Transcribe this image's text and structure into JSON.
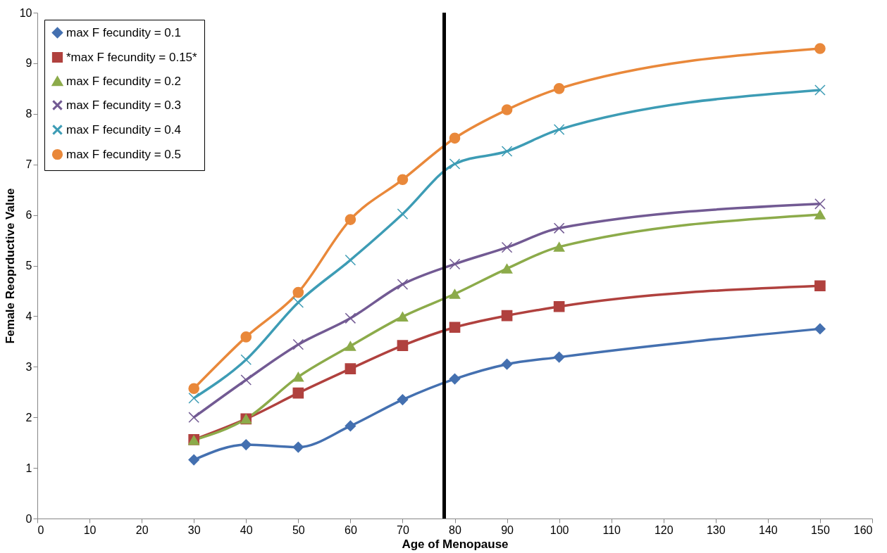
{
  "chart_data": {
    "type": "line",
    "xlabel": "Age of Menopause",
    "ylabel": "Female Reoprductive Value",
    "x": [
      30,
      40,
      50,
      60,
      70,
      80,
      90,
      100,
      150
    ],
    "series": [
      {
        "name": "max F fecundity = 0.1",
        "color": "#4470b0",
        "marker": "diamond",
        "values": [
          1.16,
          1.46,
          1.41,
          1.83,
          2.35,
          2.76,
          3.05,
          3.19,
          3.75
        ]
      },
      {
        "name": "*max F fecundity = 0.15*",
        "color": "#b0413e",
        "marker": "square",
        "values": [
          1.56,
          1.97,
          2.48,
          2.96,
          3.42,
          3.78,
          4.01,
          4.19,
          4.6
        ]
      },
      {
        "name": "max F fecundity = 0.2",
        "color": "#8cab4a",
        "marker": "triangle",
        "values": [
          1.55,
          1.97,
          2.8,
          3.41,
          3.99,
          4.44,
          4.94,
          5.37,
          6.01
        ]
      },
      {
        "name": "max F fecundity = 0.3",
        "color": "#725a93",
        "marker": "cross",
        "values": [
          2.0,
          2.74,
          3.44,
          3.96,
          4.63,
          5.03,
          5.36,
          5.74,
          6.22
        ]
      },
      {
        "name": "max F fecundity = 0.4",
        "color": "#3d9cb5",
        "marker": "cross",
        "values": [
          2.38,
          3.14,
          4.27,
          5.11,
          6.02,
          7.01,
          7.26,
          7.69,
          8.47
        ]
      },
      {
        "name": "max F fecundity = 0.5",
        "color": "#e9883a",
        "marker": "circle",
        "values": [
          2.57,
          3.59,
          4.47,
          5.91,
          6.7,
          7.52,
          8.08,
          8.5,
          9.29
        ]
      }
    ],
    "xlim": [
      0,
      160
    ],
    "xticks": [
      0,
      10,
      20,
      30,
      40,
      50,
      60,
      70,
      80,
      90,
      100,
      110,
      120,
      130,
      140,
      150,
      160
    ],
    "ylim": [
      0,
      10
    ],
    "yticks": [
      0,
      1,
      2,
      3,
      4,
      5,
      6,
      7,
      8,
      9,
      10
    ],
    "ref_lines": [
      {
        "axis": "x",
        "value": 78,
        "color": "#000000"
      }
    ],
    "grid": false,
    "legend": "top left",
    "line_style": "solid"
  }
}
